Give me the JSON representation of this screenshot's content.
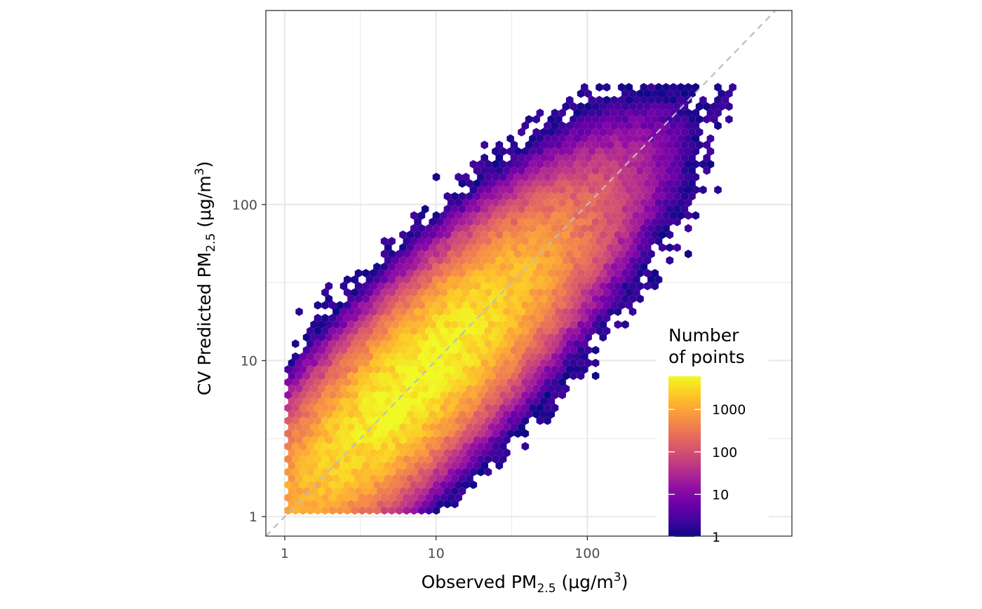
{
  "chart_data": {
    "type": "hexbin",
    "x_scale": "log10",
    "y_scale": "log10",
    "x_limits": [
      0.75,
      2250
    ],
    "y_limits": [
      0.75,
      1750
    ],
    "x_ticks": [
      1,
      10,
      100
    ],
    "y_ticks": [
      1,
      10,
      100
    ],
    "x_tick_labels": [
      "1",
      "10",
      "100"
    ],
    "y_tick_labels": [
      "1",
      "10",
      "100"
    ],
    "xlabel": {
      "main": "Observed PM",
      "sub": "2.5",
      "unit_open": " (μg/m",
      "sup": "3",
      "unit_close": ")"
    },
    "ylabel": {
      "main": "CV Predicted PM",
      "sub": "2.5",
      "unit_open": " (μg/m",
      "sup": "3",
      "unit_close": ")"
    },
    "reference_line": {
      "type": "identity y = x",
      "style": "dashed",
      "color": "#bdbdbd"
    },
    "grid": true,
    "density": {
      "center_x": 7.5,
      "center_y": 7.5,
      "peak_count": 6000,
      "spread_along_diagonal_log10": 0.62,
      "spread_across_diagonal_log10": 0.17,
      "min_count": 1
    },
    "colorbar": {
      "title_line1": "Number",
      "title_line2": "of points",
      "scale": "log10",
      "colormap": "plasma",
      "range": [
        1,
        6000
      ],
      "ticks": [
        1,
        10,
        100,
        1000
      ],
      "tick_labels": [
        "1",
        "10",
        "100",
        "1000"
      ],
      "position": "right inside"
    },
    "colors": {
      "low": "#0d0887",
      "mid": "#cc4778",
      "high": "#f0f921",
      "grid": "#ebebeb",
      "panel_border": "#333333"
    }
  }
}
